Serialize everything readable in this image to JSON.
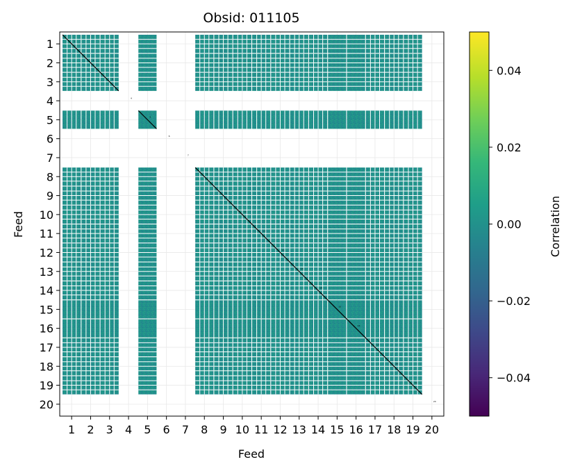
{
  "chart_data": {
    "type": "heatmap",
    "title": "Obsid: 011105",
    "xlabel": "Feed",
    "ylabel": "Feed",
    "x_ticks": [
      "1",
      "2",
      "3",
      "4",
      "5",
      "6",
      "7",
      "8",
      "9",
      "10",
      "11",
      "12",
      "13",
      "14",
      "15",
      "16",
      "17",
      "18",
      "19",
      "20"
    ],
    "y_ticks": [
      "1",
      "2",
      "3",
      "4",
      "5",
      "6",
      "7",
      "8",
      "9",
      "10",
      "11",
      "12",
      "13",
      "14",
      "15",
      "16",
      "17",
      "18",
      "19",
      "20"
    ],
    "feeds": [
      1,
      2,
      3,
      4,
      5,
      6,
      7,
      8,
      9,
      10,
      11,
      12,
      13,
      14,
      15,
      16,
      17,
      18,
      19,
      20
    ],
    "active_feeds": [
      1,
      2,
      3,
      5,
      8,
      9,
      10,
      11,
      12,
      13,
      14,
      15,
      16,
      17,
      18,
      19
    ],
    "inactive_feeds": [
      4,
      6,
      7,
      20
    ],
    "block_rows_per_feed": {
      "1": 4,
      "2": 4,
      "3": 4,
      "5": 1,
      "8": 4,
      "9": 4,
      "10": 4,
      "11": 4,
      "12": 4,
      "13": 4,
      "14": 4,
      "15": 1,
      "16": 1,
      "17": 4,
      "18": 4,
      "19": 4
    },
    "block_cols_per_feed": {
      "1": 4,
      "2": 4,
      "3": 4,
      "5": 1,
      "8": 4,
      "9": 4,
      "10": 4,
      "11": 4,
      "12": 4,
      "13": 4,
      "14": 4,
      "15": 1,
      "16": 1,
      "17": 4,
      "18": 4,
      "19": 4
    },
    "value_description": "Off-diagonal correlations approximately 0.00 (noise); diagonal (auto-correlation) saturated",
    "diagonal_labels": [
      "1",
      "2",
      "3",
      "4",
      "5",
      "6",
      "7",
      "8",
      "9",
      "10",
      "11",
      "12",
      "13",
      "14",
      "15",
      "16",
      "17",
      "18",
      "19",
      "20"
    ],
    "colorbar": {
      "label": "Correlation",
      "vmin": -0.05,
      "vmax": 0.05,
      "ticks": [
        "0.04",
        "0.02",
        "0.00",
        "−0.02",
        "−0.04"
      ],
      "tick_values": [
        0.04,
        0.02,
        0.0,
        -0.02,
        -0.04
      ],
      "colormap": "viridis",
      "colors": [
        "#440154",
        "#482878",
        "#3e4989",
        "#31688e",
        "#26828e",
        "#1f9e89",
        "#35b779",
        "#6ece58",
        "#b5de2b",
        "#fde725"
      ]
    },
    "cell_color": "#21918c",
    "grid": true
  }
}
